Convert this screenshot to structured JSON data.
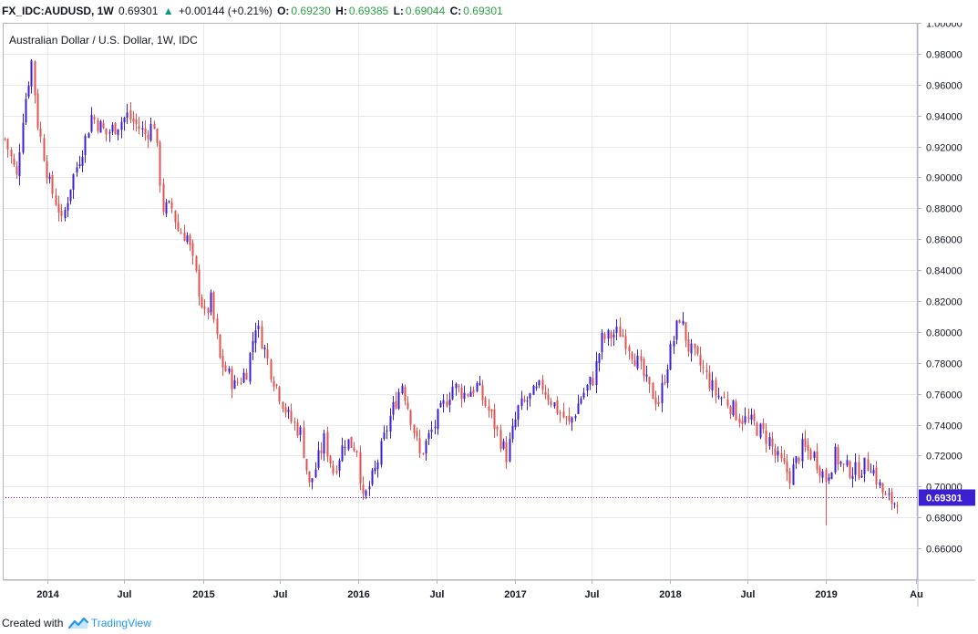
{
  "header": {
    "symbol": "FX_IDC:AUDUSD, 1W",
    "last": "0.69301",
    "change_arrow": "▲",
    "change": "+0.00144 (+0.21%)",
    "o_label": "O:",
    "o_value": "0.69230",
    "h_label": "H:",
    "h_value": "0.69385",
    "l_label": "L:",
    "l_value": "0.69044",
    "c_label": "C:",
    "c_value": "0.69301"
  },
  "footer": {
    "created_with": "Created with",
    "brand": "TradingView",
    "brand_icon": "tradingview-logo-icon"
  },
  "colors": {
    "up": "#3c1fd0",
    "down": "#e0534f",
    "grid": "#e6e9ef",
    "last_price_bg": "#3c1fd0",
    "price_line": "#7d1aa6"
  },
  "chart_data": {
    "type": "candlestick",
    "title": "Australian Dollar / U.S. Dollar, 1W, IDC",
    "ylim": [
      0.64,
      1.0
    ],
    "y_ticks": [
      "0.66000",
      "0.68000",
      "0.70000",
      "0.72000",
      "0.74000",
      "0.76000",
      "0.78000",
      "0.80000",
      "0.82000",
      "0.84000",
      "0.86000",
      "0.88000",
      "0.90000",
      "0.92000",
      "0.94000",
      "0.96000",
      "0.98000",
      "1.00000"
    ],
    "x_range": [
      "2013-09-23",
      "2019-07-29"
    ],
    "x_ticks": [
      {
        "label": "2014",
        "date": "2014-01-01"
      },
      {
        "label": "Jul",
        "date": "2014-07-01"
      },
      {
        "label": "2015",
        "date": "2015-01-01"
      },
      {
        "label": "Jul",
        "date": "2015-07-01"
      },
      {
        "label": "2016",
        "date": "2016-01-01"
      },
      {
        "label": "Jul",
        "date": "2016-07-01"
      },
      {
        "label": "2017",
        "date": "2017-01-01"
      },
      {
        "label": "Jul",
        "date": "2017-07-01"
      },
      {
        "label": "2018",
        "date": "2018-01-01"
      },
      {
        "label": "Jul",
        "date": "2018-07-01"
      },
      {
        "label": "2019",
        "date": "2019-01-01"
      },
      {
        "label": "Au",
        "date": "2019-08-01"
      }
    ],
    "grid": true,
    "last_price": 0.69301,
    "last_price_label": "0.69301",
    "anchors": [
      [
        "2013-09-23",
        0.925
      ],
      [
        "2013-10-21",
        0.9
      ],
      [
        "2013-11-04",
        0.94
      ],
      [
        "2013-11-25",
        0.975
      ],
      [
        "2013-12-09",
        0.935
      ],
      [
        "2014-01-06",
        0.895
      ],
      [
        "2014-01-27",
        0.88
      ],
      [
        "2014-02-03",
        0.87
      ],
      [
        "2014-02-24",
        0.895
      ],
      [
        "2014-03-31",
        0.925
      ],
      [
        "2014-04-14",
        0.94
      ],
      [
        "2014-05-19",
        0.928
      ],
      [
        "2014-07-07",
        0.94
      ],
      [
        "2014-08-18",
        0.928
      ],
      [
        "2014-09-08",
        0.935
      ],
      [
        "2014-09-29",
        0.88
      ],
      [
        "2014-10-20",
        0.88
      ],
      [
        "2014-11-03",
        0.866
      ],
      [
        "2014-11-24",
        0.862
      ],
      [
        "2015-01-05",
        0.81
      ],
      [
        "2015-01-19",
        0.82
      ],
      [
        "2015-02-09",
        0.782
      ],
      [
        "2015-03-16",
        0.765
      ],
      [
        "2015-04-13",
        0.775
      ],
      [
        "2015-05-04",
        0.805
      ],
      [
        "2015-05-18",
        0.795
      ],
      [
        "2015-06-08",
        0.775
      ],
      [
        "2015-07-20",
        0.745
      ],
      [
        "2015-08-17",
        0.735
      ],
      [
        "2015-09-07",
        0.7
      ],
      [
        "2015-10-12",
        0.73
      ],
      [
        "2015-11-02",
        0.71
      ],
      [
        "2015-11-30",
        0.73
      ],
      [
        "2015-12-28",
        0.725
      ],
      [
        "2016-01-11",
        0.69
      ],
      [
        "2016-02-08",
        0.71
      ],
      [
        "2016-03-14",
        0.745
      ],
      [
        "2016-04-11",
        0.767
      ],
      [
        "2016-05-02",
        0.745
      ],
      [
        "2016-05-23",
        0.72
      ],
      [
        "2016-06-27",
        0.74
      ],
      [
        "2016-08-08",
        0.765
      ],
      [
        "2016-09-05",
        0.76
      ],
      [
        "2016-10-03",
        0.765
      ],
      [
        "2016-11-07",
        0.745
      ],
      [
        "2016-12-12",
        0.72
      ],
      [
        "2017-01-09",
        0.75
      ],
      [
        "2017-03-06",
        0.765
      ],
      [
        "2017-04-10",
        0.75
      ],
      [
        "2017-05-08",
        0.74
      ],
      [
        "2017-06-05",
        0.758
      ],
      [
        "2017-07-03",
        0.77
      ],
      [
        "2017-07-24",
        0.795
      ],
      [
        "2017-09-04",
        0.8
      ],
      [
        "2017-09-18",
        0.795
      ],
      [
        "2017-10-16",
        0.78
      ],
      [
        "2017-11-13",
        0.762
      ],
      [
        "2017-12-04",
        0.755
      ],
      [
        "2017-12-25",
        0.78
      ],
      [
        "2018-01-22",
        0.81
      ],
      [
        "2018-02-12",
        0.79
      ],
      [
        "2018-03-19",
        0.775
      ],
      [
        "2018-04-16",
        0.76
      ],
      [
        "2018-05-14",
        0.755
      ],
      [
        "2018-06-11",
        0.745
      ],
      [
        "2018-07-16",
        0.74
      ],
      [
        "2018-08-20",
        0.73
      ],
      [
        "2018-09-03",
        0.72
      ],
      [
        "2018-10-08",
        0.707
      ],
      [
        "2018-11-05",
        0.725
      ],
      [
        "2018-12-03",
        0.72
      ],
      [
        "2018-12-31",
        0.705
      ],
      [
        "2019-01-21",
        0.72
      ],
      [
        "2019-02-11",
        0.712
      ],
      [
        "2019-03-11",
        0.71
      ],
      [
        "2019-04-15",
        0.715
      ],
      [
        "2019-05-06",
        0.7
      ],
      [
        "2019-05-20",
        0.692
      ],
      [
        "2019-06-10",
        0.69
      ],
      [
        "2019-06-17",
        0.693
      ]
    ],
    "spikes": [
      {
        "date": "2018-12-31",
        "low": 0.675
      }
    ]
  }
}
